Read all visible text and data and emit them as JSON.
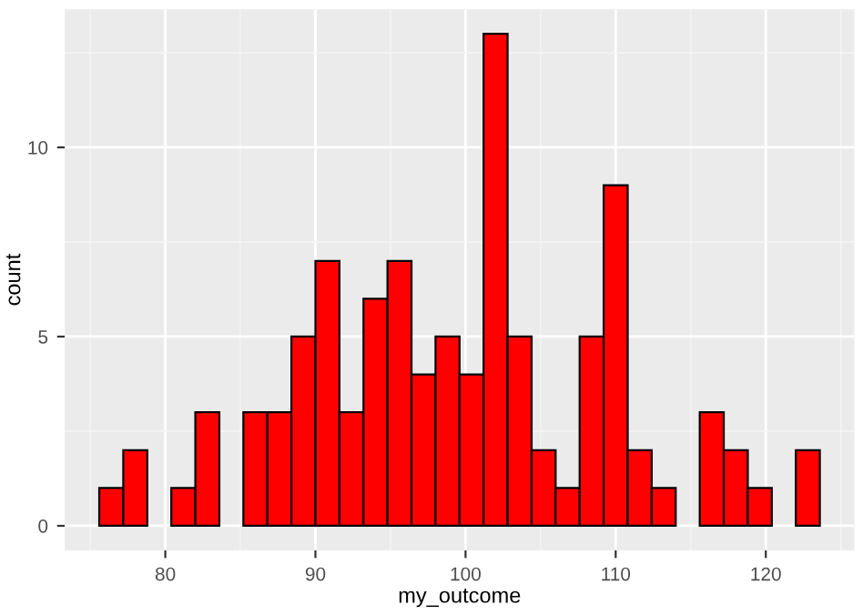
{
  "chart_data": {
    "type": "histogram",
    "xlabel": "my_outcome",
    "ylabel": "count",
    "bins": [
      75.6,
      77.2,
      78.8,
      80.4,
      82.0,
      83.6,
      85.2,
      86.8,
      88.4,
      90.0,
      91.6,
      93.2,
      94.8,
      96.4,
      98.0,
      99.6,
      101.2,
      102.8,
      104.4,
      106.0,
      107.6,
      109.2,
      110.8,
      112.4,
      114.0,
      115.6,
      117.2,
      118.8,
      120.4,
      122.0,
      123.6
    ],
    "values": [
      1,
      2,
      0,
      1,
      3,
      0,
      3,
      3,
      5,
      7,
      3,
      6,
      7,
      4,
      5,
      4,
      13,
      5,
      2,
      1,
      5,
      9,
      2,
      1,
      0,
      3,
      2,
      1,
      0,
      2
    ],
    "color": "#ff0000",
    "xlim": [
      73.3,
      125.9
    ],
    "xticks": [
      80,
      90,
      100,
      110,
      120
    ],
    "ylim": [
      -0.65,
      13.65
    ],
    "yticks": [
      0,
      5,
      10
    ],
    "grid": true,
    "legend": false
  }
}
